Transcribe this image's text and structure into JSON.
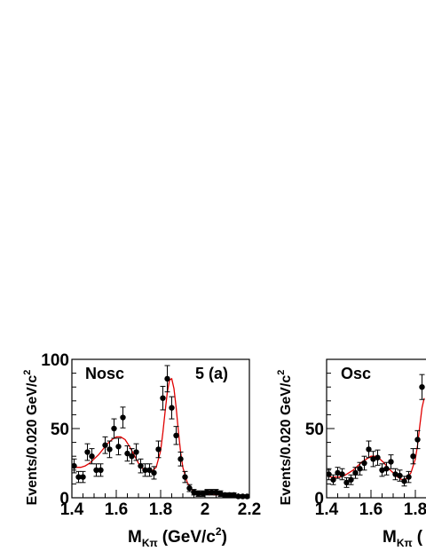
{
  "chart_data": [
    {
      "type": "scatter",
      "label": "Nosc",
      "panel": "5 (a)",
      "xlabel_main": "M",
      "xlabel_sub": "Kπ",
      "xlabel_unit_pre": "(GeV/c",
      "xlabel_unit_sup": "2",
      "xlabel_unit_post": ")",
      "ylabel": "Events/0.020 GeV/c",
      "ylabel_sup": "2",
      "xlim": [
        1.4,
        2.2
      ],
      "ylim": [
        0,
        100
      ],
      "xticks": [
        1.4,
        1.6,
        1.8,
        2,
        2.2
      ],
      "xtick_labels": [
        "1.4",
        "1.6",
        "1.8",
        "2",
        "2.2"
      ],
      "yticks": [
        0,
        50,
        100
      ],
      "ytick_labels": [
        "0",
        "50",
        "100"
      ],
      "points": {
        "x": [
          1.41,
          1.43,
          1.45,
          1.47,
          1.49,
          1.51,
          1.53,
          1.55,
          1.57,
          1.59,
          1.61,
          1.63,
          1.65,
          1.67,
          1.69,
          1.71,
          1.73,
          1.75,
          1.77,
          1.79,
          1.81,
          1.83,
          1.85,
          1.87,
          1.89,
          1.91,
          1.93,
          1.95,
          1.97,
          1.99,
          2.01,
          2.03,
          2.05,
          2.07,
          2.09,
          2.11,
          2.13,
          2.15,
          2.17,
          2.19
        ],
        "y": [
          23,
          15,
          15,
          33,
          30,
          20,
          20,
          38,
          35,
          50,
          37,
          58,
          32,
          30,
          33,
          23,
          20,
          20,
          18,
          35,
          72,
          86,
          65,
          45,
          28,
          15,
          7,
          4,
          3,
          3,
          4,
          4,
          4,
          3,
          2,
          2,
          2,
          1,
          1,
          1
        ],
        "err": [
          5,
          4,
          4,
          6,
          5.5,
          4.5,
          4.5,
          6,
          6,
          7,
          6,
          7.5,
          5.5,
          5.5,
          6,
          5,
          4.5,
          4.5,
          4.5,
          6,
          8.5,
          9.5,
          8,
          6.5,
          5,
          4,
          2.5,
          2,
          2,
          2,
          2,
          2,
          2,
          2,
          1.5,
          1.5,
          1.5,
          1,
          1,
          1
        ]
      },
      "fit": {
        "x": [
          1.4,
          1.42,
          1.44,
          1.46,
          1.48,
          1.5,
          1.52,
          1.54,
          1.56,
          1.58,
          1.6,
          1.62,
          1.64,
          1.66,
          1.68,
          1.7,
          1.72,
          1.74,
          1.76,
          1.78,
          1.8,
          1.81,
          1.82,
          1.83,
          1.84,
          1.85,
          1.86,
          1.87,
          1.88,
          1.89,
          1.9,
          1.92,
          1.94,
          1.96,
          1.98,
          2,
          2.05,
          2.1,
          2.15,
          2.2
        ],
        "y": [
          24,
          22,
          22,
          23,
          25,
          28,
          31,
          35,
          39,
          42,
          44,
          44,
          42,
          37,
          31,
          25,
          21,
          19,
          19,
          22,
          34,
          47,
          62,
          76,
          85,
          86,
          79,
          65,
          48,
          33,
          22,
          11,
          6,
          4,
          3,
          3,
          2,
          2,
          1,
          1
        ]
      }
    },
    {
      "type": "scatter",
      "label": "Osc",
      "xlabel_main": "M",
      "xlabel_sub": "Kπ",
      "xlabel_unit_pre": "(",
      "ylabel": "Events/0.020 GeV/c",
      "ylabel_sup": "2",
      "xlim": [
        1.4,
        2.2
      ],
      "ylim": [
        0,
        100
      ],
      "xticks": [
        1.4,
        1.6,
        1.8
      ],
      "xtick_labels": [
        "1.4",
        "1.6",
        "1.8"
      ],
      "yticks": [
        0,
        50
      ],
      "ytick_labels": [
        "0",
        "50"
      ],
      "points": {
        "x": [
          1.41,
          1.43,
          1.45,
          1.47,
          1.49,
          1.51,
          1.53,
          1.55,
          1.57,
          1.59,
          1.61,
          1.63,
          1.65,
          1.67,
          1.69,
          1.71,
          1.73,
          1.75,
          1.77,
          1.79,
          1.81,
          1.83
        ],
        "y": [
          17,
          13,
          18,
          17,
          11,
          13,
          18,
          21,
          25,
          35,
          28,
          29,
          20,
          21,
          26,
          17,
          16,
          12,
          15,
          30,
          42,
          80
        ],
        "err": [
          4,
          3.5,
          4,
          4,
          3.5,
          3.5,
          4,
          4.5,
          5,
          6,
          5.5,
          5.5,
          4.5,
          4.5,
          5,
          4,
          4,
          3.5,
          4,
          5.5,
          6.5,
          9
        ]
      },
      "fit": {
        "x": [
          1.4,
          1.42,
          1.44,
          1.46,
          1.48,
          1.5,
          1.52,
          1.54,
          1.56,
          1.58,
          1.6,
          1.62,
          1.64,
          1.66,
          1.68,
          1.7,
          1.72,
          1.74,
          1.76,
          1.78,
          1.8,
          1.81,
          1.82,
          1.83,
          1.84
        ],
        "y": [
          16,
          15,
          15,
          15,
          16,
          18,
          20,
          23,
          26,
          28,
          30,
          30,
          28,
          25,
          21,
          18,
          15,
          13,
          14,
          18,
          28,
          38,
          52,
          65,
          72
        ]
      }
    }
  ]
}
